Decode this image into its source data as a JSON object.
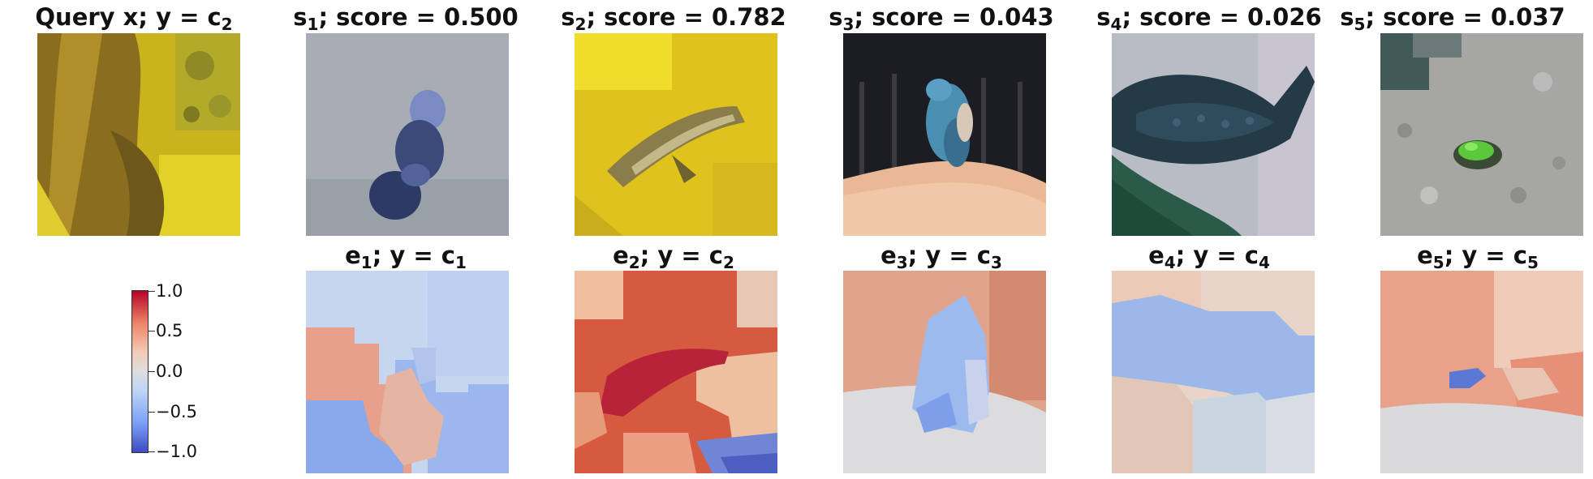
{
  "query": {
    "title": "Query x; y = ",
    "label": "c",
    "label_sub": "2"
  },
  "samples": [
    {
      "sym": "s",
      "sub": "1",
      "rest": "; score = 0.500"
    },
    {
      "sym": "s",
      "sub": "2",
      "rest": "; score = 0.782"
    },
    {
      "sym": "s",
      "sub": "3",
      "rest": "; score = 0.043"
    },
    {
      "sym": "s",
      "sub": "4",
      "rest": "; score = 0.026"
    },
    {
      "sym": "s",
      "sub": "5",
      "rest": "; score = 0.037"
    }
  ],
  "explanations": [
    {
      "sym": "e",
      "sub": "1",
      "mid": "; y = ",
      "csym": "c",
      "csub": "1"
    },
    {
      "sym": "e",
      "sub": "2",
      "mid": "; y = ",
      "csym": "c",
      "csub": "2"
    },
    {
      "sym": "e",
      "sub": "3",
      "mid": "; y = ",
      "csym": "c",
      "csub": "3"
    },
    {
      "sym": "e",
      "sub": "4",
      "mid": "; y = ",
      "csym": "c",
      "csub": "4"
    },
    {
      "sym": "e",
      "sub": "5",
      "mid": "; y = ",
      "csym": "c",
      "csub": "5"
    }
  ],
  "colorbar": {
    "colormap": "coolwarm",
    "ticks": [
      "1.0",
      "0.5",
      "0.0",
      "−0.5",
      "−1.0"
    ]
  }
}
